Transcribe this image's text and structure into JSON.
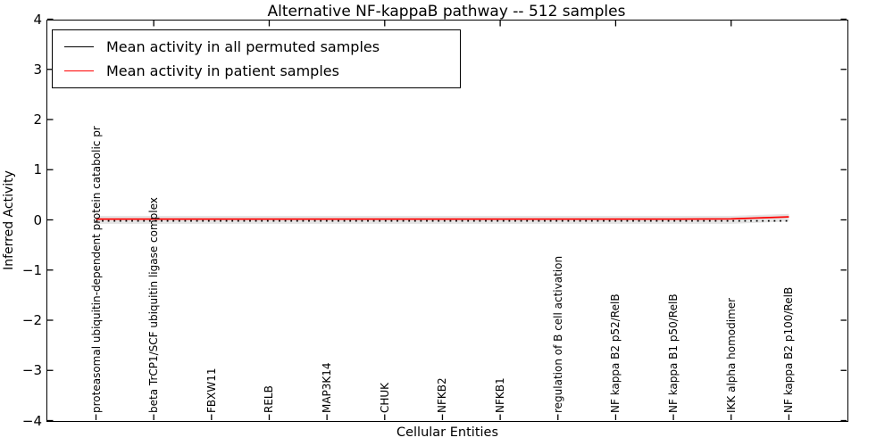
{
  "chart_data": {
    "type": "line",
    "title": "Alternative NF-kappaB pathway -- 512 samples",
    "xlabel": "Cellular Entities",
    "ylabel": "Inferred Activity",
    "ylim": [
      -4,
      4
    ],
    "yticks": [
      4,
      3,
      2,
      1,
      0,
      -1,
      -2,
      -3,
      -4
    ],
    "grid": false,
    "legend_position": "upper left",
    "categories": [
      "proteasomal ubiquitin-dependent protein catabolic pr",
      "beta TrCP1/SCF ubiquitin ligase complex",
      "FBXW11",
      "RELB",
      "MAP3K14",
      "CHUK",
      "NFKB2",
      "NFKB1",
      "regulation of B cell activation",
      "NF kappa B2 p52/RelB",
      "NF kappa B1 p50/RelB",
      "IKK alpha homodimer",
      "NF kappa B2 p100/RelB"
    ],
    "series": [
      {
        "name": "Mean activity in all permuted samples",
        "color": "#000000",
        "line_style": "dotted",
        "values": [
          -0.02,
          -0.02,
          -0.02,
          -0.02,
          -0.02,
          -0.02,
          -0.02,
          -0.02,
          -0.02,
          -0.02,
          -0.02,
          -0.02,
          -0.02
        ]
      },
      {
        "name": "Mean activity in patient samples",
        "color": "#ff0000",
        "line_style": "solid",
        "values": [
          0.015,
          0.015,
          0.015,
          0.015,
          0.015,
          0.015,
          0.015,
          0.015,
          0.015,
          0.015,
          0.015,
          0.02,
          0.06
        ]
      }
    ],
    "band": {
      "color": "#e5e5e5",
      "upper": [
        0.08,
        0.08,
        0.08,
        0.08,
        0.08,
        0.08,
        0.08,
        0.08,
        0.08,
        0.08,
        0.08,
        0.08,
        0.12
      ],
      "lower": [
        -0.08,
        -0.08,
        -0.08,
        -0.08,
        -0.08,
        -0.08,
        -0.08,
        -0.08,
        -0.08,
        -0.08,
        -0.08,
        -0.08,
        -0.03
      ]
    }
  }
}
